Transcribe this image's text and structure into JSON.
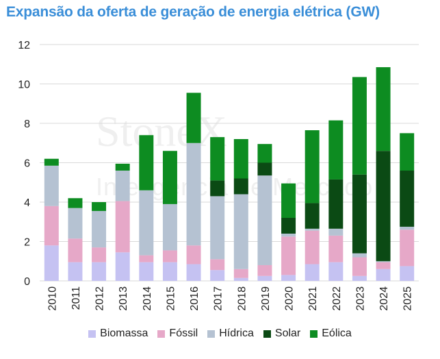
{
  "title": "Expansão da oferta de geração de energia elétrica (GW)",
  "watermark": {
    "brand": "StoneX",
    "tagline": "Inteligência de Mercado"
  },
  "colors": {
    "Biomassa": "#c5c2f2",
    "Fóssil": "#e6a8c8",
    "Hídrica": "#b5c2d2",
    "Solar": "#0b4a14",
    "Eólica": "#0d8c21",
    "grid": "#d9d9d9",
    "title": "#3a8ed8"
  },
  "chart_data": {
    "type": "bar",
    "stacked": true,
    "title": "Expansão da oferta de geração de energia elétrica (GW)",
    "categories": [
      "2010",
      "2011",
      "2012",
      "2013",
      "2014",
      "2015",
      "2016",
      "2017",
      "2018",
      "2019",
      "2020",
      "2021",
      "2022",
      "2023",
      "2024",
      "2025"
    ],
    "series": [
      {
        "name": "Biomassa",
        "values": [
          1.8,
          0.95,
          0.95,
          1.45,
          0.95,
          0.95,
          0.85,
          0.55,
          0.15,
          0.25,
          0.3,
          0.85,
          0.95,
          0.25,
          0.6,
          0.75
        ]
      },
      {
        "name": "Fóssil",
        "values": [
          2.0,
          1.2,
          0.75,
          2.6,
          0.35,
          0.6,
          0.95,
          0.55,
          0.45,
          0.55,
          1.95,
          1.7,
          1.35,
          0.95,
          0.35,
          1.85
        ]
      },
      {
        "name": "Hídrica",
        "values": [
          2.05,
          1.55,
          1.85,
          1.55,
          3.3,
          2.35,
          5.2,
          3.2,
          3.8,
          4.55,
          0.15,
          0.1,
          0.35,
          0.2,
          0.05,
          0.15
        ]
      },
      {
        "name": "Solar",
        "values": [
          0,
          0,
          0,
          0,
          0,
          0,
          0,
          0.8,
          0.8,
          0.65,
          0.8,
          1.3,
          2.5,
          4.0,
          5.6,
          2.85
        ]
      },
      {
        "name": "Eólica",
        "values": [
          0.35,
          0.5,
          0.45,
          0.35,
          2.8,
          2.7,
          2.55,
          2.2,
          2.0,
          0.95,
          1.75,
          3.7,
          3.0,
          4.95,
          4.25,
          1.9
        ]
      }
    ],
    "yticks": [
      "0",
      "2",
      "4",
      "6",
      "8",
      "10",
      "12"
    ],
    "ylim": [
      0,
      12
    ],
    "grid": true,
    "legend_position": "bottom"
  }
}
